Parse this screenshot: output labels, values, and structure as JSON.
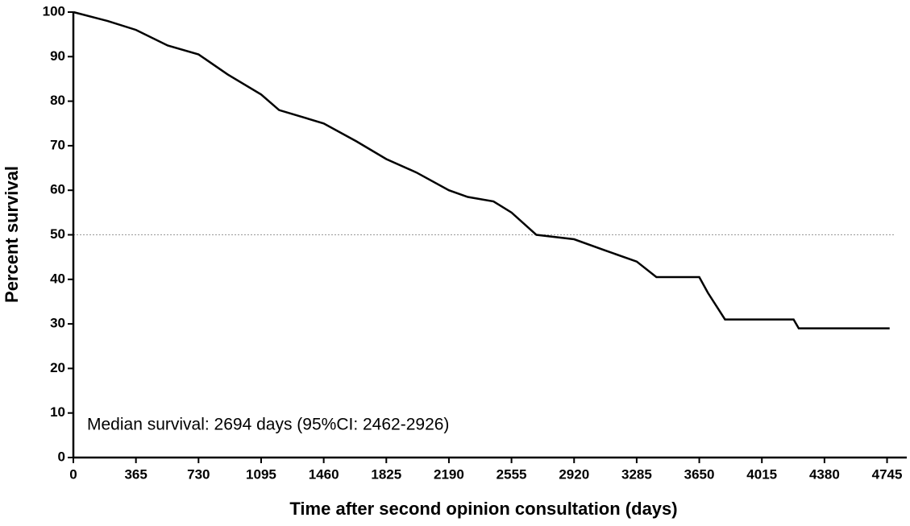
{
  "chart_data": {
    "type": "line",
    "x_label": "Time after second opinion consultation (days)",
    "y_label": "Percent survival",
    "annotation": "Median survival: 2694 days (95%CI: 2462-2926)",
    "x": [
      0,
      200,
      365,
      550,
      730,
      900,
      1095,
      1200,
      1460,
      1650,
      1825,
      2000,
      2190,
      2300,
      2450,
      2555,
      2700,
      2920,
      3100,
      3285,
      3400,
      3650,
      3700,
      3800,
      4200,
      4230,
      4760
    ],
    "series": [
      {
        "name": "Survival",
        "color": "#000000",
        "values": [
          100,
          98,
          96,
          92.5,
          90.5,
          86,
          81.5,
          78,
          75,
          71,
          67,
          64,
          60,
          58.5,
          57.5,
          55,
          50,
          49,
          46.5,
          44,
          40.5,
          40.5,
          37,
          31,
          31,
          29,
          29
        ]
      }
    ],
    "reference_line": 50,
    "xlim": [
      0,
      4860
    ],
    "ylim": [
      0,
      100
    ],
    "xticks": [
      0,
      365,
      730,
      1095,
      1460,
      1825,
      2190,
      2555,
      2920,
      3285,
      3650,
      4015,
      4380,
      4745
    ],
    "yticks": [
      0,
      10,
      20,
      30,
      40,
      50,
      60,
      70,
      80,
      90,
      100
    ]
  }
}
